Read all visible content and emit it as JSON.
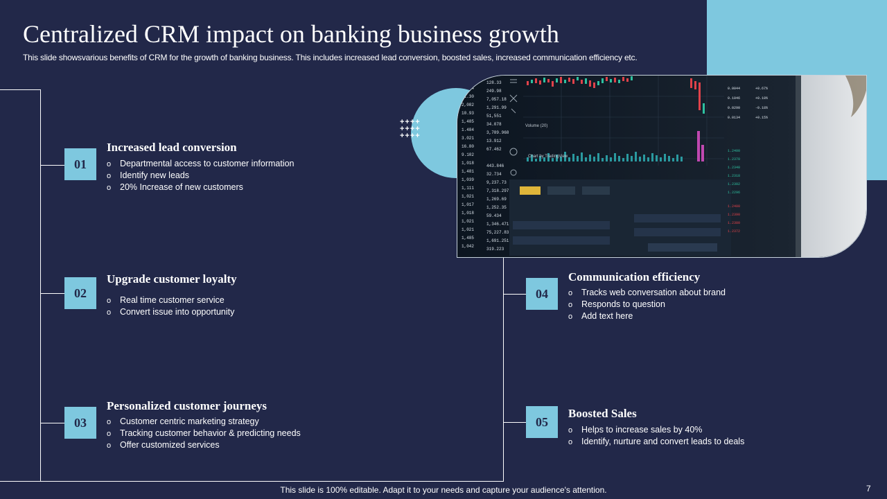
{
  "slide": {
    "title": "Centralized CRM impact on banking business growth",
    "subtitle": "This slide showsvarious benefits of CRM for the growth of banking business. This includes increased lead conversion, boosted sales, increased communication efficiency etc.",
    "footer": "This slide is 100% editable. Adapt it to your needs and capture your audience's attention.",
    "page_number": "7"
  },
  "decor": {
    "plus_grid": "++++\n++++\n++++"
  },
  "cards": [
    {
      "number": "01",
      "title": "Increased lead conversion",
      "items": [
        "Departmental  access to customer information",
        "Identify new leads",
        "20% Increase  of new customers"
      ]
    },
    {
      "number": "02",
      "title": "Upgrade customer loyalty",
      "items": [
        "Real time customer service",
        "Convert  issue into opportunity"
      ]
    },
    {
      "number": "03",
      "title": "Personalized customer journeys",
      "items": [
        "Customer centric marketing strategy",
        "Tracking customer behavior  & predicting needs",
        "Offer customized services"
      ]
    },
    {
      "number": "04",
      "title": "Communication efficiency",
      "items": [
        "Tracks web conversation about brand",
        "Responds to question",
        "Add text here"
      ]
    },
    {
      "number": "05",
      "title": "Boosted Sales",
      "items": [
        "Helps to increase sales by 40%",
        "Identify, nurture and convert leads to deals"
      ]
    }
  ],
  "colors": {
    "background": "#222849",
    "accent": "#7ec8df",
    "text": "#ffffff"
  }
}
